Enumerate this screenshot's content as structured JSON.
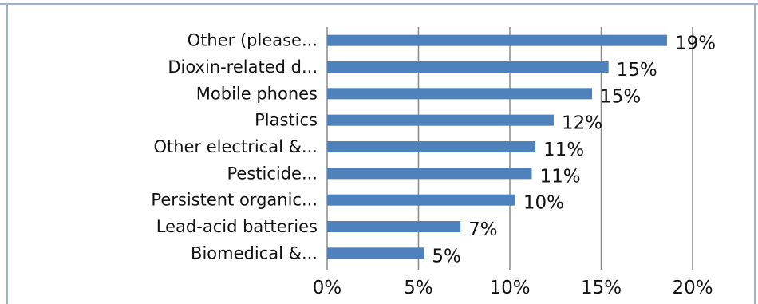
{
  "chart_data": {
    "type": "bar",
    "orientation": "horizontal",
    "categories": [
      "Other (please...",
      "Dioxin-related d...",
      "Mobile phones",
      "Plastics",
      "Other electrical &...",
      "Pesticide...",
      "Persistent organic...",
      "Lead-acid batteries",
      "Biomedical &..."
    ],
    "values": [
      18.6,
      15.4,
      14.5,
      12.4,
      11.4,
      11.2,
      10.3,
      7.3,
      5.3
    ],
    "data_labels": [
      "19%",
      "15%",
      "15%",
      "12%",
      "11%",
      "11%",
      "10%",
      "7%",
      "5%"
    ],
    "xlim": [
      0,
      20
    ],
    "xticks": [
      0,
      5,
      10,
      15,
      20
    ],
    "xtick_labels": [
      "0%",
      "5%",
      "10%",
      "15%",
      "20%"
    ],
    "grid": "vertical",
    "bar_color": "#4f81bd",
    "grid_color": "#888888",
    "frame_color": "#9fb3c8",
    "title": "",
    "xlabel": "",
    "ylabel": ""
  }
}
